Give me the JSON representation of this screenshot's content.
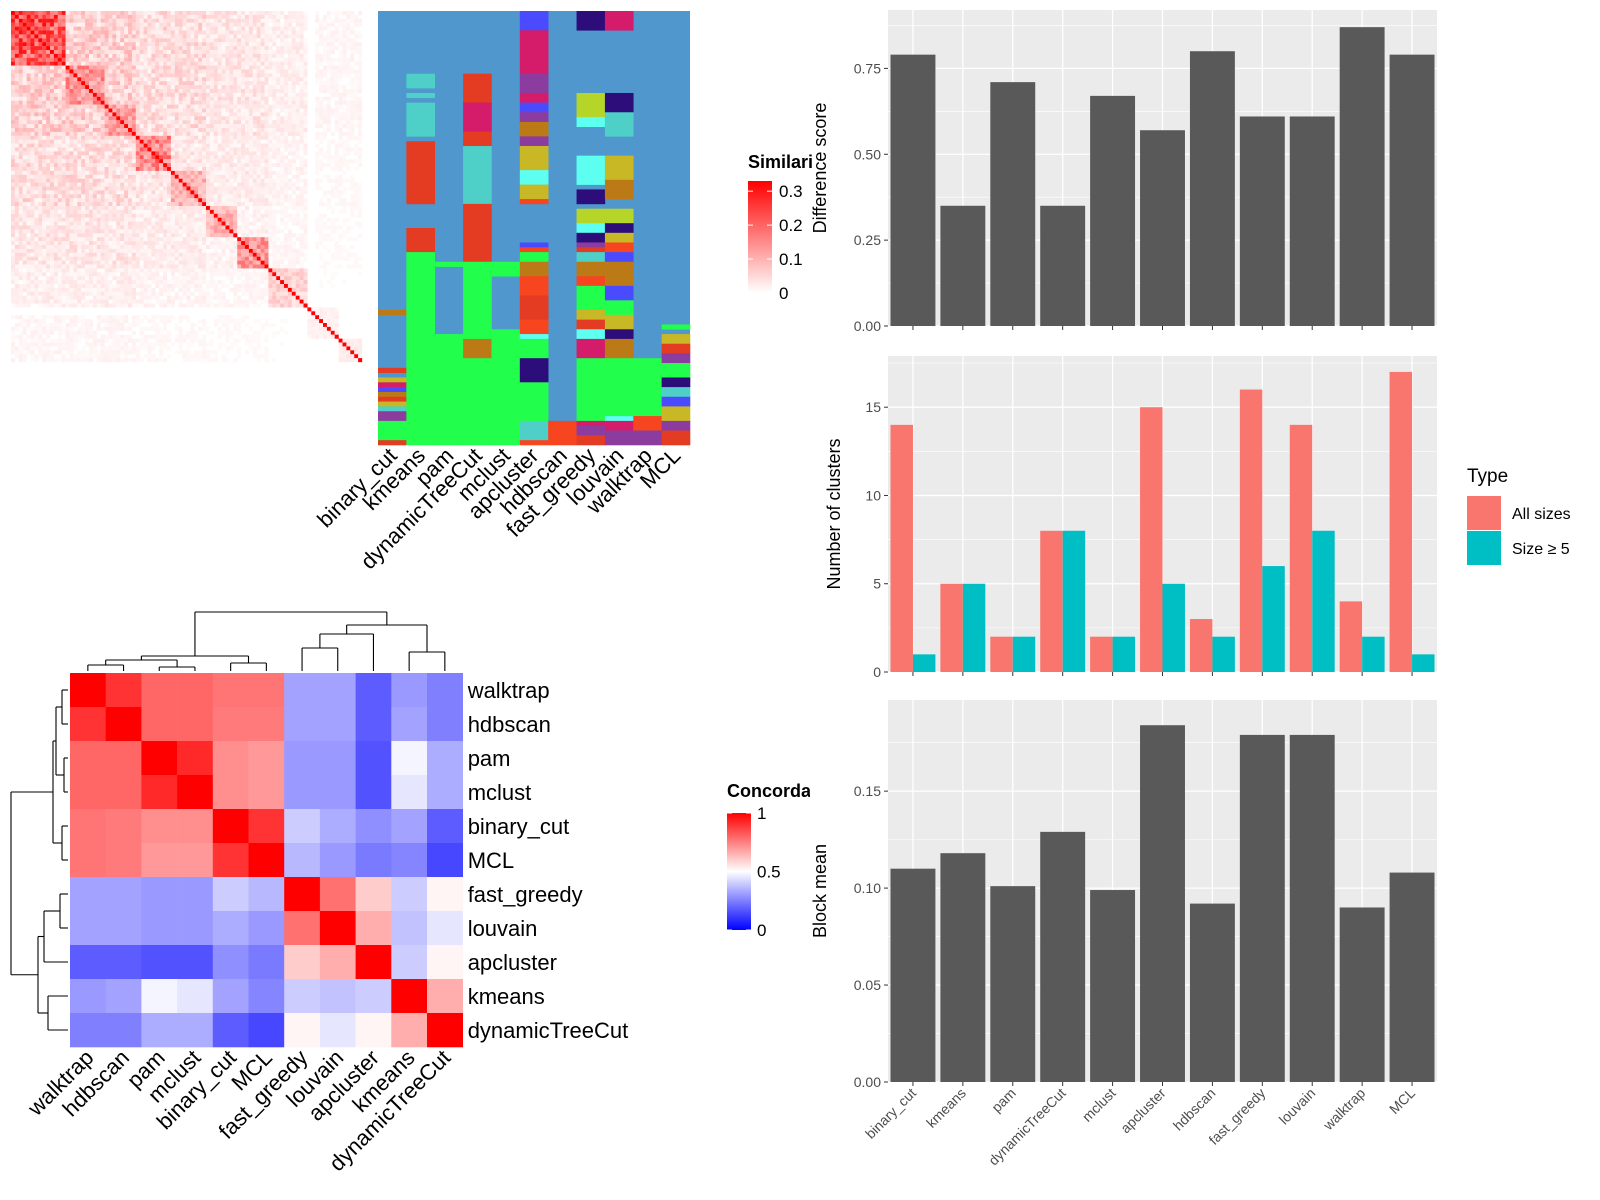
{
  "chart_data": [
    {
      "id": "similarity_heatmap",
      "type": "heatmap",
      "legend": {
        "title": "Similarity",
        "ticks": [
          0.3,
          0.2,
          0.1,
          0
        ],
        "tick_labels": [
          "0.3",
          "0.2",
          "0.1",
          "0"
        ],
        "range": [
          0,
          0.33
        ]
      },
      "diagonal_blocks": [
        {
          "start": 0,
          "size": 14,
          "level": 0.22
        },
        {
          "start": 14,
          "size": 10,
          "level": 0.14
        },
        {
          "start": 24,
          "size": 8,
          "level": 0.12
        },
        {
          "start": 32,
          "size": 9,
          "level": 0.16
        },
        {
          "start": 41,
          "size": 9,
          "level": 0.1
        },
        {
          "start": 50,
          "size": 8,
          "level": 0.1
        },
        {
          "start": 58,
          "size": 8,
          "level": 0.13
        },
        {
          "start": 66,
          "size": 10,
          "level": 0.06
        },
        {
          "start": 76,
          "size": 8,
          "level": 0.03
        },
        {
          "start": 84,
          "size": 6,
          "level": 0.04
        }
      ]
    },
    {
      "id": "cluster_assignment_matrix",
      "type": "heatmap",
      "columns": [
        "binary_cut",
        "kmeans",
        "pam",
        "dynamicTreeCut",
        "mclust",
        "apcluster",
        "hdbscan",
        "fast_greedy",
        "louvain",
        "walktrap",
        "MCL"
      ],
      "background": "#4f97cc",
      "palette": [
        "#21ff4c",
        "#e33c22",
        "#4ecfc7",
        "#d41c6a",
        "#bb7a16",
        "#2c0d7a",
        "#c9b826",
        "#5cfff0",
        "#b5d629",
        "#8c3c9e",
        "#4a4aff",
        "#f6451f"
      ]
    },
    {
      "id": "concordance_heatmap",
      "type": "heatmap",
      "rows": [
        "walktrap",
        "hdbscan",
        "pam",
        "mclust",
        "binary_cut",
        "MCL",
        "fast_greedy",
        "louvain",
        "apcluster",
        "kmeans",
        "dynamicTreeCut"
      ],
      "columns": [
        "walktrap",
        "hdbscan",
        "pam",
        "mclust",
        "binary_cut",
        "MCL",
        "fast_greedy",
        "louvain",
        "apcluster",
        "kmeans",
        "dynamicTreeCut"
      ],
      "values": [
        [
          1.0,
          0.9,
          0.8,
          0.8,
          0.77,
          0.77,
          0.32,
          0.32,
          0.18,
          0.3,
          0.25
        ],
        [
          0.9,
          1.0,
          0.8,
          0.8,
          0.76,
          0.76,
          0.32,
          0.32,
          0.18,
          0.32,
          0.25
        ],
        [
          0.8,
          0.8,
          1.0,
          0.92,
          0.72,
          0.7,
          0.3,
          0.3,
          0.16,
          0.48,
          0.34
        ],
        [
          0.8,
          0.8,
          0.92,
          1.0,
          0.72,
          0.7,
          0.3,
          0.3,
          0.16,
          0.45,
          0.34
        ],
        [
          0.77,
          0.76,
          0.72,
          0.72,
          1.0,
          0.9,
          0.4,
          0.34,
          0.28,
          0.32,
          0.18
        ],
        [
          0.77,
          0.76,
          0.7,
          0.7,
          0.9,
          1.0,
          0.36,
          0.3,
          0.24,
          0.26,
          0.14
        ],
        [
          0.32,
          0.32,
          0.3,
          0.3,
          0.4,
          0.36,
          1.0,
          0.78,
          0.6,
          0.4,
          0.52
        ],
        [
          0.32,
          0.32,
          0.3,
          0.3,
          0.34,
          0.3,
          0.78,
          1.0,
          0.66,
          0.38,
          0.45
        ],
        [
          0.18,
          0.18,
          0.16,
          0.16,
          0.28,
          0.24,
          0.6,
          0.66,
          1.0,
          0.4,
          0.52
        ],
        [
          0.3,
          0.32,
          0.48,
          0.45,
          0.32,
          0.26,
          0.4,
          0.38,
          0.4,
          1.0,
          0.66
        ],
        [
          0.25,
          0.25,
          0.34,
          0.34,
          0.18,
          0.14,
          0.52,
          0.45,
          0.52,
          0.66,
          1.0
        ]
      ],
      "legend": {
        "title": "Concordance",
        "ticks": [
          1,
          0.5,
          0
        ],
        "tick_labels": [
          "1",
          "0.5",
          "0"
        ],
        "range": [
          0,
          1
        ],
        "colors": [
          "#0000ff",
          "#ffffff",
          "#ff0000"
        ]
      }
    },
    {
      "id": "difference_score",
      "type": "bar",
      "categories": [
        "binary_cut",
        "kmeans",
        "pam",
        "dynamicTreeCut",
        "mclust",
        "apcluster",
        "hdbscan",
        "fast_greedy",
        "louvain",
        "walktrap",
        "MCL"
      ],
      "values": [
        0.79,
        0.35,
        0.71,
        0.35,
        0.67,
        0.57,
        0.8,
        0.61,
        0.61,
        0.87,
        0.79
      ],
      "ylabel": "Difference score",
      "ylim": [
        0,
        0.92
      ],
      "yticks": [
        0,
        0.25,
        0.5,
        0.75
      ],
      "ytick_labels": [
        "0.00",
        "0.25",
        "0.50",
        "0.75"
      ],
      "color": "#595959",
      "panel_background": "#ebebeb"
    },
    {
      "id": "number_of_clusters",
      "type": "bar",
      "categories": [
        "binary_cut",
        "kmeans",
        "pam",
        "dynamicTreeCut",
        "mclust",
        "apcluster",
        "hdbscan",
        "fast_greedy",
        "louvain",
        "walktrap",
        "MCL"
      ],
      "series": [
        {
          "name": "All sizes",
          "color": "#f8766d",
          "values": [
            14,
            5,
            2,
            8,
            2,
            15,
            3,
            16,
            14,
            4,
            17
          ]
        },
        {
          "name": "Size ≥ 5",
          "color": "#00bfc4",
          "values": [
            1,
            5,
            2,
            8,
            2,
            5,
            2,
            6,
            8,
            2,
            1
          ]
        }
      ],
      "ylabel": "Number of clusters",
      "ylim": [
        0,
        17.9
      ],
      "yticks": [
        0,
        5,
        10,
        15
      ],
      "ytick_labels": [
        "0",
        "5",
        "10",
        "15"
      ],
      "legend": {
        "title": "Type",
        "placement": "right"
      },
      "panel_background": "#ebebeb"
    },
    {
      "id": "block_mean",
      "type": "bar",
      "categories": [
        "binary_cut",
        "kmeans",
        "pam",
        "dynamicTreeCut",
        "mclust",
        "apcluster",
        "hdbscan",
        "fast_greedy",
        "louvain",
        "walktrap",
        "MCL"
      ],
      "values": [
        0.11,
        0.118,
        0.101,
        0.129,
        0.099,
        0.184,
        0.092,
        0.179,
        0.179,
        0.09,
        0.108
      ],
      "ylabel": "Block mean",
      "ylim": [
        0,
        0.197
      ],
      "yticks": [
        0,
        0.05,
        0.1,
        0.15
      ],
      "ytick_labels": [
        "0.00",
        "0.05",
        "0.10",
        "0.15"
      ],
      "color": "#595959",
      "panel_background": "#ebebeb"
    }
  ]
}
